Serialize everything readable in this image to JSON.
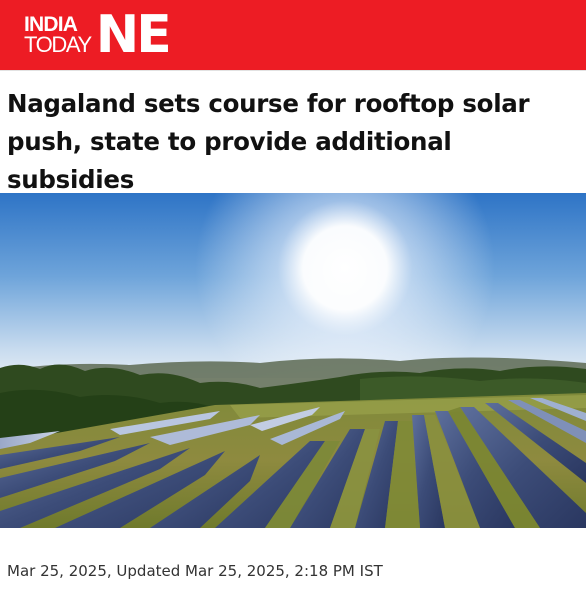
{
  "header": {
    "logo_top": "INDIA",
    "logo_bottom": "TODAY",
    "logo_brand": "NE",
    "background_color": "#ed1c24"
  },
  "article": {
    "title": "Nagaland sets course for rooftop solar push, state to provide additional subsidies",
    "published": "Mar 25, 2025,",
    "updated": "Updated Mar 25, 2025, 2:18 PM IST"
  }
}
